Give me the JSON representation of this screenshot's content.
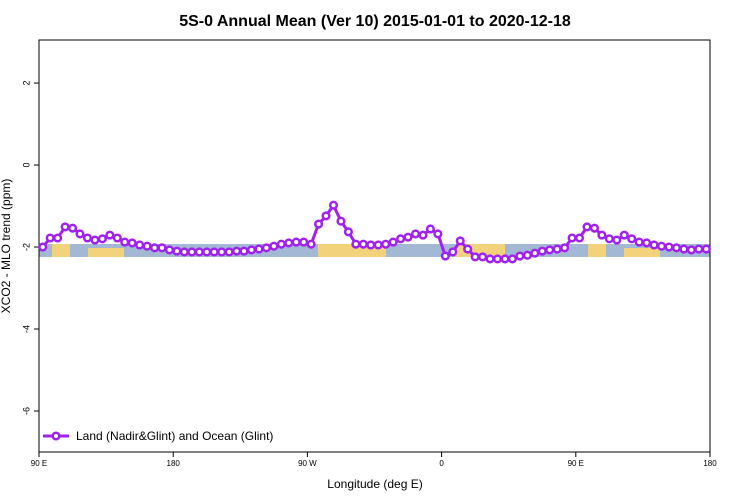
{
  "chart_data": {
    "type": "line",
    "title": "5S-0 Annual Mean (Ver 10)   2015-01-01 to 2020-12-18",
    "x_label": "Longitude (deg E)",
    "y_label": "XCO2 - MLO trend (ppm)",
    "xlim": [
      90,
      540
    ],
    "ylim": [
      -7,
      3.05
    ],
    "xticks": [
      {
        "value": 90,
        "label": "90 E"
      },
      {
        "value": 180,
        "label": "180"
      },
      {
        "value": 270,
        "label": "90 W"
      },
      {
        "value": 360,
        "label": "0"
      },
      {
        "value": 450,
        "label": "90 E"
      },
      {
        "value": 540,
        "label": "180"
      }
    ],
    "yticks": [
      -6,
      -4,
      -2,
      0,
      2
    ],
    "legend": "bottom-left",
    "x": [
      92.5,
      97.5,
      102.5,
      107.5,
      112.5,
      117.5,
      122.5,
      127.5,
      132.5,
      137.5,
      142.5,
      147.5,
      152.5,
      157.5,
      162.5,
      167.5,
      172.5,
      177.5,
      182.5,
      187.5,
      192.5,
      197.5,
      202.5,
      207.5,
      212.5,
      217.5,
      222.5,
      227.5,
      232.5,
      237.5,
      242.5,
      247.5,
      252.5,
      257.5,
      262.5,
      267.5,
      272.5,
      277.5,
      282.5,
      287.5,
      292.5,
      297.5,
      302.5,
      307.5,
      312.5,
      317.5,
      322.5,
      327.5,
      332.5,
      337.5,
      342.5,
      347.5,
      352.5,
      357.5,
      362.5,
      367.5,
      372.5,
      377.5,
      382.5,
      387.5,
      392.5,
      397.5,
      402.5,
      407.5,
      412.5,
      417.5,
      422.5,
      427.5,
      432.5,
      437.5,
      442.5,
      447.5,
      452.5,
      457.5,
      462.5,
      467.5,
      472.5,
      477.5,
      482.5,
      487.5,
      492.5,
      497.5,
      502.5,
      507.5,
      512.5,
      517.5,
      522.5,
      527.5,
      532.5,
      537.5
    ],
    "series": [
      {
        "name": "Land (Nadir&Glint) and Ocean (Glint)",
        "color": "#a020f0",
        "values": [
          -2.0,
          -1.78,
          -1.78,
          -1.51,
          -1.54,
          -1.68,
          -1.78,
          -1.83,
          -1.8,
          -1.71,
          -1.78,
          -1.88,
          -1.9,
          -1.95,
          -1.98,
          -2.02,
          -2.02,
          -2.07,
          -2.1,
          -2.12,
          -2.12,
          -2.12,
          -2.12,
          -2.12,
          -2.12,
          -2.12,
          -2.1,
          -2.1,
          -2.07,
          -2.05,
          -2.02,
          -1.98,
          -1.93,
          -1.9,
          -1.88,
          -1.88,
          -1.93,
          -1.44,
          -1.24,
          -0.98,
          -1.37,
          -1.63,
          -1.93,
          -1.93,
          -1.95,
          -1.95,
          -1.93,
          -1.88,
          -1.8,
          -1.76,
          -1.68,
          -1.71,
          -1.56,
          -1.68,
          -2.22,
          -2.12,
          -1.85,
          -2.05,
          -2.24,
          -2.24,
          -2.29,
          -2.29,
          -2.29,
          -2.29,
          -2.22,
          -2.2,
          -2.15,
          -2.1,
          -2.07,
          -2.05,
          -2.02,
          -1.78,
          -1.78,
          -1.51,
          -1.54,
          -1.71,
          -1.8,
          -1.83,
          -1.71,
          -1.8,
          -1.88,
          -1.9,
          -1.95,
          -1.98,
          -2.0,
          -2.02,
          -2.05,
          -2.07,
          -2.05,
          -2.05
        ]
      }
    ]
  }
}
